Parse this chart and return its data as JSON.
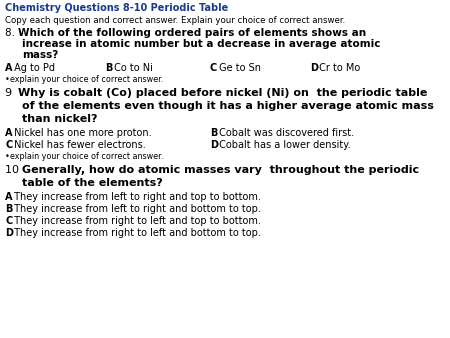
{
  "title": "Chemistry Questions 8-10 Periodic Table",
  "subtitle": "Copy each question and correct answer. Explain your choice of correct answer.",
  "title_color": "#1a3a8a",
  "bg_color": "#ffffff",
  "q8_num": "8. ",
  "q8_text1": "Which of the following ordered pairs of elements shows an",
  "q8_text2": "increase in atomic number but a decrease in average atomic",
  "q8_text3": "mass?",
  "q8_A": "A",
  "q8_Atext": " Ag to Pd",
  "q8_B": "B",
  "q8_Btext": " Co to Ni",
  "q8_C": "C",
  "q8_Ctext": " Ge to Sn",
  "q8_D": "D",
  "q8_Dtext": " Cr to Mo",
  "explain": "•explain your choice of correct answer.",
  "q9_num": "9 ",
  "q9_text1": "Why is cobalt (Co) placed before nickel (Ni) on  the periodic table",
  "q9_text2": "of the elements even though it has a higher average atomic mass",
  "q9_text3": "than nickel?",
  "q9_A": "A",
  "q9_Atext": " Nickel has one more proton.",
  "q9_B": "B",
  "q9_Btext": " Cobalt was discovered first.",
  "q9_C": "C",
  "q9_Ctext": " Nickel has fewer electrons.",
  "q9_D": "D",
  "q9_Dtext": " Cobalt has a lower density.",
  "q10_num": "10 ",
  "q10_text1": "Generally, how do atomic masses vary  throughout the periodic",
  "q10_text2": "table of the elements?",
  "q10_A": "A",
  "q10_Atext": " They increase from left to right and top to bottom.",
  "q10_B": "B",
  "q10_Btext": " They increase from left to right and bottom to top.",
  "q10_C": "C",
  "q10_Ctext": " They increase from right to left and top to bottom.",
  "q10_D": "D",
  "q10_Dtext": " They increase from right to left and bottom to top.",
  "title_fs": 7.0,
  "subtitle_fs": 6.2,
  "q_num_fs": 7.5,
  "q_bold_fs": 7.5,
  "ans_fs": 7.0,
  "explain_fs": 5.8,
  "q9_num_fs": 8.0,
  "q9_bold_fs": 8.0,
  "q10_num_fs": 8.0,
  "q10_bold_fs": 8.0
}
